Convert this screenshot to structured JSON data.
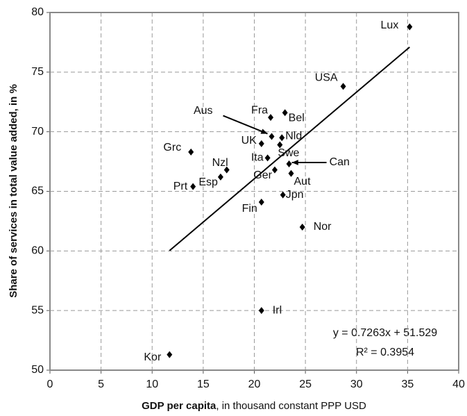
{
  "chart_data": {
    "type": "scatter",
    "x_label_bold": "GDP per capita",
    "x_label_rest": ", in thousand constant PPP USD",
    "y_label": "Share of services in total value added, in %",
    "xlim": [
      0,
      40
    ],
    "xticks": [
      0,
      5,
      10,
      15,
      20,
      25,
      30,
      35,
      40
    ],
    "ylim": [
      50,
      80
    ],
    "yticks": [
      50,
      55,
      60,
      65,
      70,
      75,
      80
    ],
    "grid": true,
    "color": "#000000",
    "labels": [
      "Lux",
      "USA",
      "Fra",
      "Bel",
      "Nld",
      "Aus",
      "UK",
      "Swe",
      "Ita",
      "Ger",
      "Can",
      "Aut",
      "Jpn",
      "Fin",
      "Nor",
      "Irl",
      "Kor",
      "Prt",
      "Esp",
      "Nzl",
      "Grc"
    ],
    "x": [
      35.2,
      28.7,
      21.6,
      23.0,
      22.7,
      21.7,
      20.7,
      22.5,
      21.3,
      22.0,
      23.4,
      23.6,
      22.8,
      20.7,
      24.7,
      20.7,
      11.7,
      14.0,
      16.7,
      17.3,
      13.8
    ],
    "y": [
      78.8,
      73.8,
      71.2,
      71.6,
      69.5,
      69.6,
      69.0,
      68.9,
      67.8,
      66.8,
      67.3,
      66.5,
      64.7,
      64.1,
      62.0,
      55.0,
      51.3,
      65.4,
      66.2,
      66.8,
      68.3
    ],
    "trendline": {
      "slope": 0.7263,
      "intercept": 51.529,
      "x_range": [
        11.7,
        35.2
      ]
    },
    "equation": "y = 0.7263x + 51.529",
    "r_squared": "R² = 0.3954"
  }
}
